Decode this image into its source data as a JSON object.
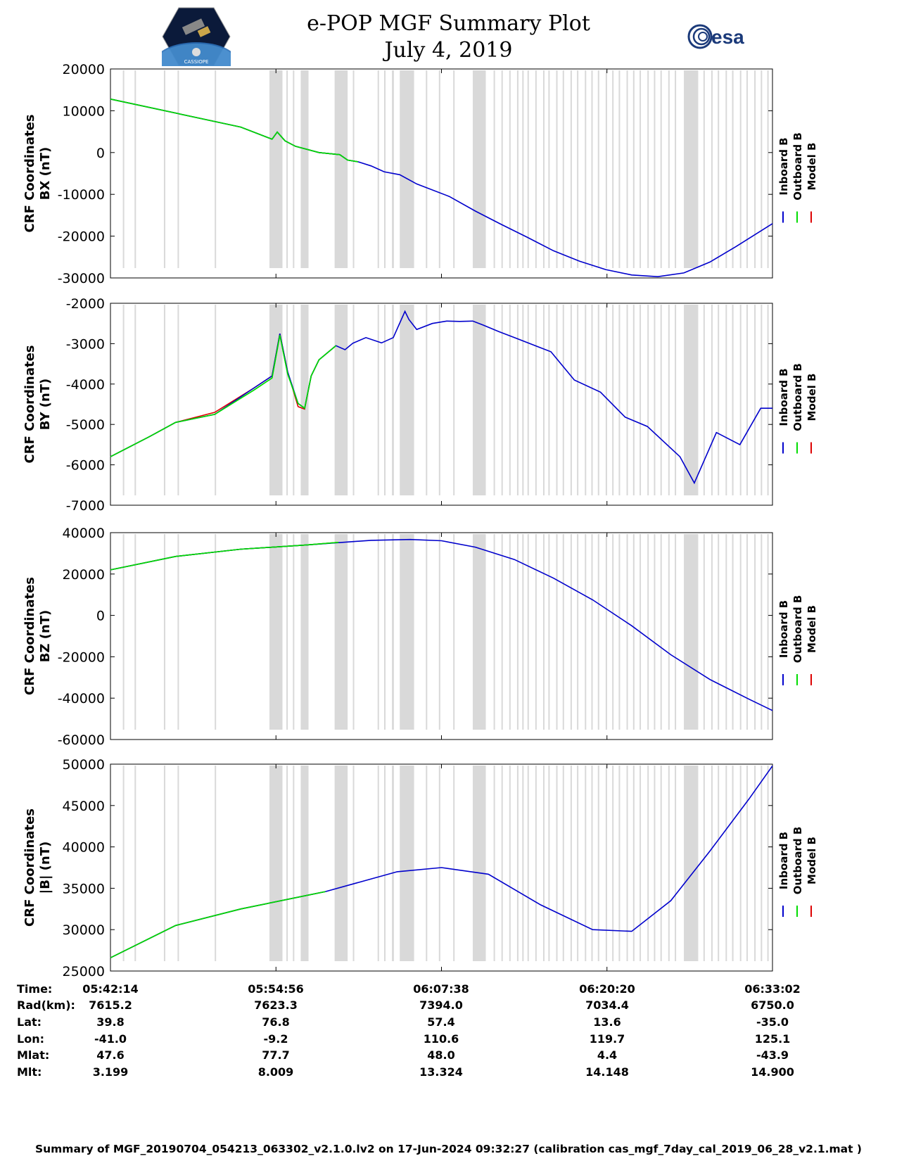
{
  "title": "e-POP MGF Summary Plot",
  "date": "July 4, 2019",
  "esa_text": "esa",
  "cassiope_text": "CASSIOPE",
  "legend": [
    "Inboard B",
    "Outboard B",
    "Model B"
  ],
  "colors": {
    "inboard": "#0000cc",
    "outboard": "#00dd00",
    "model": "#dd0000",
    "gap": "#d9d9d9"
  },
  "time_ticks": [
    "05:42:14",
    "05:54:56",
    "06:07:38",
    "06:20:20",
    "06:33:02"
  ],
  "info_rows": [
    {
      "label": "Time:",
      "values": [
        "05:42:14",
        "05:54:56",
        "06:07:38",
        "06:20:20",
        "06:33:02"
      ]
    },
    {
      "label": "Rad(km):",
      "values": [
        "7615.2",
        "7623.3",
        "7394.0",
        "7034.4",
        "6750.0"
      ]
    },
    {
      "label": "Lat:",
      "values": [
        "39.8",
        "76.8",
        "57.4",
        "13.6",
        "-35.0"
      ]
    },
    {
      "label": "Lon:",
      "values": [
        "-41.0",
        "-9.2",
        "110.6",
        "119.7",
        "125.1"
      ]
    },
    {
      "label": "Mlat:",
      "values": [
        "47.6",
        "77.7",
        "48.0",
        "4.4",
        "-43.9"
      ]
    },
    {
      "label": "Mlt:",
      "values": [
        "3.199",
        "8.009",
        "13.324",
        "14.148",
        "14.900"
      ]
    }
  ],
  "footer": "Summary of MGF_20190704_054213_063302_v2.1.0.lv2 on 17-Jun-2024 09:32:27 (calibration cas_mgf_7day_cal_2019_06_28_v2.1.mat )",
  "chart_data": [
    {
      "type": "line",
      "ylabel_line1": "CRF Coordinates",
      "ylabel_line2": "BX (nT)",
      "ylim": [
        -30000,
        20000
      ],
      "yticks": [
        "20000",
        "10000",
        "0",
        "-10000",
        "-20000",
        "-30000"
      ],
      "xlim_minutes": [
        0,
        50.8
      ],
      "outboard_end_minute": 15.5,
      "series": [
        {
          "name": "Inboard B",
          "x": [
            0,
            10,
            12.4,
            12.8,
            13.4,
            14.2,
            16,
            17.6,
            18.2,
            19,
            20,
            21,
            22.2,
            23.5,
            26,
            28,
            30,
            32,
            34,
            36,
            38,
            40,
            42,
            44,
            46,
            48,
            50.8
          ],
          "y": [
            12800,
            6100,
            3200,
            4900,
            2800,
            1500,
            0,
            -500,
            -1800,
            -2200,
            -3200,
            -4600,
            -5300,
            -7500,
            -10500,
            -14000,
            -17200,
            -20300,
            -23500,
            -26000,
            -28000,
            -29300,
            -29700,
            -28800,
            -26200,
            -22500,
            -17000
          ]
        },
        {
          "name": "Outboard B",
          "x": [
            0,
            10,
            12.4,
            12.8,
            13.4,
            14.2,
            16,
            17.6,
            18.2,
            19
          ],
          "y": [
            12800,
            6100,
            3200,
            4900,
            2800,
            1500,
            0,
            -500,
            -1800,
            -2200
          ]
        },
        {
          "name": "Model B",
          "x": [
            0,
            10,
            12.4,
            12.8,
            13.4,
            14.2,
            16,
            17.6,
            18.2,
            19
          ],
          "y": [
            12800,
            6100,
            3200,
            4900,
            2800,
            1500,
            0,
            -500,
            -1800,
            -2200
          ]
        }
      ]
    },
    {
      "type": "line",
      "ylabel_line1": "CRF Coordinates",
      "ylabel_line2": "BY (nT)",
      "ylim": [
        -7000,
        -2000
      ],
      "yticks": [
        "-2000",
        "-3000",
        "-4000",
        "-5000",
        "-6000",
        "-7000"
      ],
      "xlim_minutes": [
        0,
        50.8
      ],
      "outboard_end_minute": 15.5,
      "series": [
        {
          "name": "Inboard B",
          "x": [
            0,
            3,
            5,
            8,
            11,
            12.4,
            13,
            13.6,
            14.4,
            14.9,
            15.4,
            16,
            17.3,
            18,
            18.6,
            19.6,
            20.8,
            21.7,
            22.6,
            22.9,
            23.5,
            24.7,
            25.8,
            26.8,
            27.8,
            28.6,
            29.8,
            31,
            33.8,
            35.6,
            37.6,
            39.5,
            41.2,
            43.7,
            44.8,
            46.5,
            48.3,
            49.9,
            50.8
          ],
          "y": [
            -5800,
            -5300,
            -4950,
            -4750,
            -4100,
            -3800,
            -2750,
            -3700,
            -4480,
            -4600,
            -3800,
            -3400,
            -3050,
            -3150,
            -2990,
            -2850,
            -2980,
            -2850,
            -2200,
            -2400,
            -2650,
            -2500,
            -2440,
            -2450,
            -2440,
            -2540,
            -2700,
            -2850,
            -3200,
            -3900,
            -4200,
            -4820,
            -5050,
            -5800,
            -6450,
            -5200,
            -5500,
            -4600,
            -4600
          ]
        },
        {
          "name": "Outboard B",
          "x": [
            0,
            3,
            5,
            8,
            11,
            12.4,
            13,
            13.6,
            14.4,
            14.9,
            15.4,
            16,
            17.3
          ],
          "y": [
            -5800,
            -5300,
            -4950,
            -4750,
            -4150,
            -3850,
            -2790,
            -3750,
            -4480,
            -4600,
            -3800,
            -3400,
            -3050
          ]
        },
        {
          "name": "Model B",
          "x": [
            0,
            3,
            5,
            8,
            11,
            12.4,
            13,
            13.6,
            14.4,
            14.9,
            15.4,
            16,
            17.3
          ],
          "y": [
            -5800,
            -5300,
            -4950,
            -4700,
            -4100,
            -3800,
            -2750,
            -3700,
            -4560,
            -4620,
            -3800,
            -3400,
            -3050
          ]
        }
      ]
    },
    {
      "type": "line",
      "ylabel_line1": "CRF Coordinates",
      "ylabel_line2": "BZ (nT)",
      "ylim": [
        -60000,
        40000
      ],
      "yticks": [
        "40000",
        "20000",
        "0",
        "-20000",
        "-40000",
        "-60000"
      ],
      "xlim_minutes": [
        0,
        50.8
      ],
      "outboard_end_minute": 17.5,
      "series": [
        {
          "name": "Inboard B",
          "x": [
            0,
            5,
            10,
            15,
            20,
            23,
            25.4,
            28,
            31,
            34,
            37,
            40,
            43,
            46,
            49,
            50.8
          ],
          "y": [
            22000,
            28500,
            32000,
            34000,
            36300,
            36700,
            36100,
            33000,
            27000,
            18000,
            7500,
            -5000,
            -19000,
            -31000,
            -40500,
            -46000
          ]
        },
        {
          "name": "Outboard B",
          "x": [
            0,
            5,
            10,
            15,
            17.5
          ],
          "y": [
            22000,
            28500,
            32000,
            34000,
            35300
          ]
        },
        {
          "name": "Model B",
          "x": [
            0,
            5,
            10,
            15,
            17.5
          ],
          "y": [
            22000,
            28500,
            32000,
            34000,
            35300
          ]
        }
      ]
    },
    {
      "type": "line",
      "ylabel_line1": "CRF Coordinates",
      "ylabel_line2": "|B| (nT)",
      "ylim": [
        25000,
        50000
      ],
      "yticks": [
        "50000",
        "45000",
        "40000",
        "35000",
        "30000",
        "25000"
      ],
      "xlim_minutes": [
        0,
        50.8
      ],
      "outboard_end_minute": 16.5,
      "series": [
        {
          "name": "Inboard B",
          "x": [
            0,
            5,
            10,
            16.5,
            22,
            25.4,
            29,
            33,
            37,
            40,
            43,
            46,
            49,
            50.8
          ],
          "y": [
            26600,
            30500,
            32500,
            34600,
            37000,
            37500,
            36700,
            33000,
            30000,
            29800,
            33500,
            39500,
            45800,
            49800
          ]
        },
        {
          "name": "Outboard B",
          "x": [
            0,
            5,
            10,
            16.5
          ],
          "y": [
            26600,
            30500,
            32500,
            34600
          ]
        },
        {
          "name": "Model B",
          "x": [
            0,
            5,
            10,
            16.5
          ],
          "y": [
            26600,
            30500,
            32500,
            34600
          ]
        }
      ]
    }
  ],
  "gap_intervals_minutes": [
    [
      0.95,
      1.05
    ],
    [
      1.85,
      1.95
    ],
    [
      4.1,
      4.2
    ],
    [
      5.15,
      5.25
    ],
    [
      8.0,
      8.1
    ],
    [
      12.2,
      13.2
    ],
    [
      13.5,
      13.6
    ],
    [
      14.0,
      14.1
    ],
    [
      14.6,
      15.2
    ],
    [
      17.2,
      18.2
    ],
    [
      18.6,
      18.7
    ],
    [
      20.5,
      20.6
    ],
    [
      21.0,
      21.1
    ],
    [
      21.6,
      21.75
    ],
    [
      22.2,
      23.3
    ],
    [
      24.2,
      24.3
    ],
    [
      25.2,
      25.3
    ],
    [
      26.3,
      26.4
    ],
    [
      27.8,
      28.8
    ],
    [
      29.4,
      29.5
    ],
    [
      30.0,
      30.1
    ],
    [
      30.6,
      30.7
    ],
    [
      31.2,
      31.3
    ],
    [
      31.6,
      31.7
    ],
    [
      32.0,
      32.1
    ],
    [
      32.6,
      32.7
    ],
    [
      33.2,
      33.3
    ],
    [
      33.6,
      33.7
    ],
    [
      34.2,
      34.3
    ],
    [
      34.7,
      34.8
    ],
    [
      35.3,
      35.4
    ],
    [
      35.8,
      35.9
    ],
    [
      36.4,
      36.5
    ],
    [
      36.9,
      37.0
    ],
    [
      37.4,
      37.5
    ],
    [
      38.0,
      38.1
    ],
    [
      38.5,
      38.6
    ],
    [
      39.0,
      39.1
    ],
    [
      39.6,
      39.7
    ],
    [
      40.1,
      40.2
    ],
    [
      40.6,
      40.7
    ],
    [
      41.2,
      41.3
    ],
    [
      41.7,
      41.8
    ],
    [
      42.2,
      42.3
    ],
    [
      42.8,
      42.9
    ],
    [
      43.3,
      43.4
    ],
    [
      44.0,
      45.1
    ],
    [
      45.5,
      45.6
    ],
    [
      46.1,
      46.2
    ],
    [
      46.6,
      46.7
    ],
    [
      47.2,
      47.3
    ],
    [
      47.7,
      47.8
    ],
    [
      48.3,
      48.4
    ],
    [
      48.8,
      48.9
    ],
    [
      49.4,
      49.5
    ],
    [
      49.9,
      50.0
    ],
    [
      50.4,
      50.5
    ]
  ]
}
